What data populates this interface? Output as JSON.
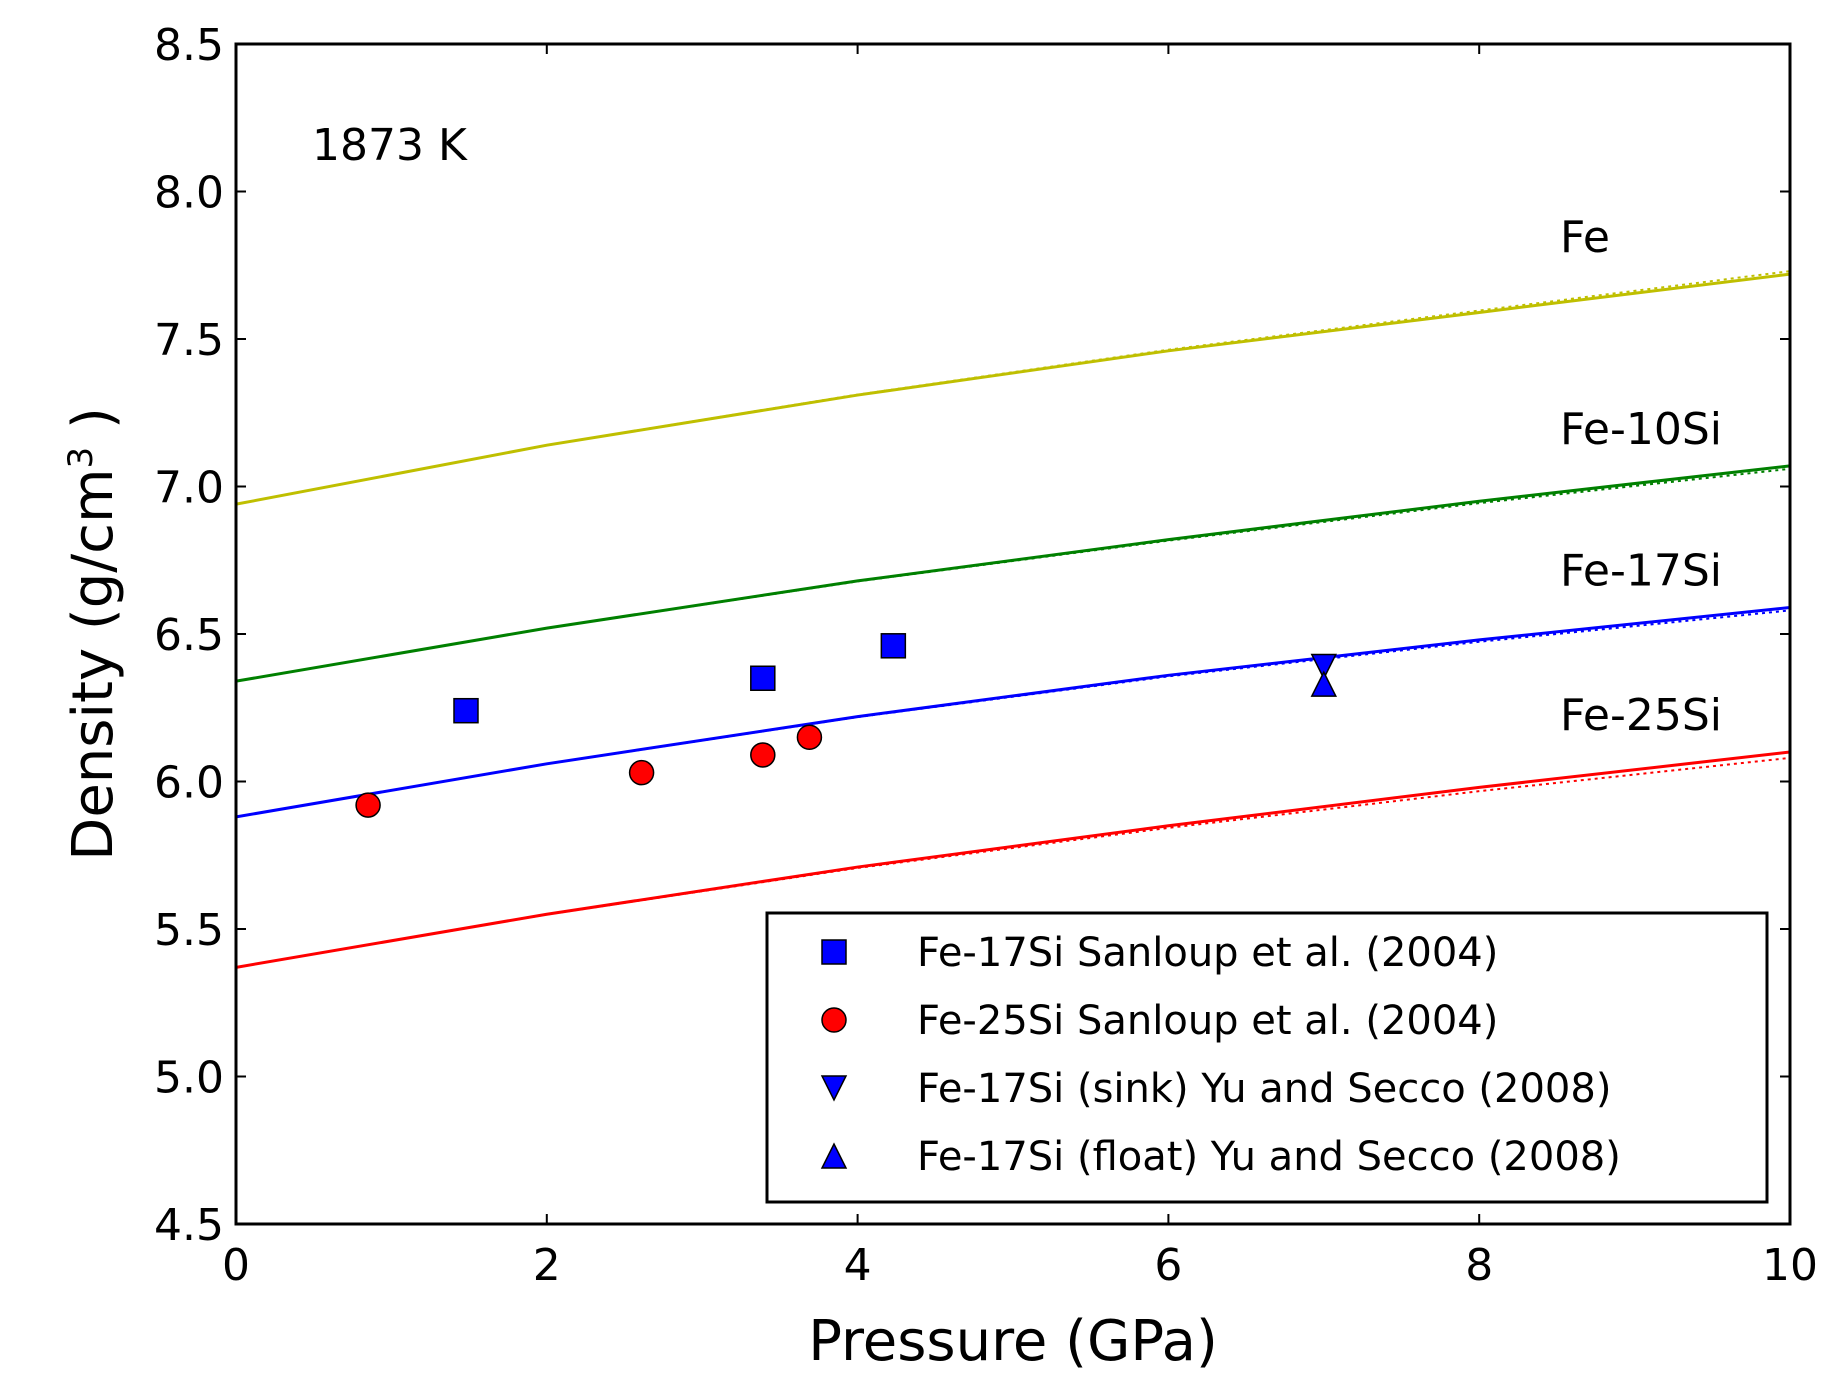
{
  "chart_data": {
    "type": "line",
    "title": "",
    "annotation": "1873 K",
    "xlabel": "Pressure (GPa)",
    "ylabel": {
      "prefix": "Density ",
      "unit_base": "(g/cm",
      "unit_exp": "3",
      "unit_close": " )"
    },
    "xlim": [
      0,
      10
    ],
    "ylim": [
      4.5,
      8.5
    ],
    "x_ticks": [
      0,
      2,
      4,
      6,
      8,
      10
    ],
    "y_ticks": [
      4.5,
      5.0,
      5.5,
      6.0,
      6.5,
      7.0,
      7.5,
      8.0,
      8.5
    ],
    "x_tick_labels": [
      "0",
      "2",
      "4",
      "6",
      "8",
      "10"
    ],
    "y_tick_labels": [
      "4.5",
      "5.0",
      "5.5",
      "6.0",
      "6.5",
      "7.0",
      "7.5",
      "8.0",
      "8.5"
    ],
    "grid": false,
    "legend_position": "bottom-right",
    "series": [
      {
        "name": "Fe",
        "color": "#bfbf00",
        "x": [
          0,
          2,
          4,
          6,
          8,
          10
        ],
        "y": [
          6.94,
          7.14,
          7.31,
          7.46,
          7.59,
          7.72
        ],
        "dotted_end": 7.73
      },
      {
        "name": "Fe-10Si",
        "color": "#008000",
        "x": [
          0,
          2,
          4,
          6,
          8,
          10
        ],
        "y": [
          6.34,
          6.52,
          6.68,
          6.82,
          6.95,
          7.07
        ],
        "dotted_end": 7.06
      },
      {
        "name": "Fe-17Si",
        "color": "#0000ff",
        "x": [
          0,
          2,
          4,
          6,
          8,
          10
        ],
        "y": [
          5.88,
          6.06,
          6.22,
          6.36,
          6.48,
          6.59
        ],
        "dotted_end": 6.58
      },
      {
        "name": "Fe-25Si",
        "color": "#ff0000",
        "x": [
          0,
          2,
          4,
          6,
          8,
          10
        ],
        "y": [
          5.37,
          5.55,
          5.71,
          5.85,
          5.98,
          6.1
        ],
        "dotted_end": 6.08
      }
    ],
    "scatter": [
      {
        "label": "Fe-17Si Sanloup et al. (2004)",
        "marker": "square",
        "color": "#0000ff",
        "points": [
          [
            1.48,
            6.24
          ],
          [
            3.39,
            6.35
          ],
          [
            4.23,
            6.46
          ]
        ]
      },
      {
        "label": "Fe-25Si Sanloup et al. (2004)",
        "marker": "circle",
        "color": "#ff0000",
        "points": [
          [
            0.85,
            5.92
          ],
          [
            2.61,
            6.03
          ],
          [
            3.39,
            6.09
          ],
          [
            3.69,
            6.15
          ]
        ]
      },
      {
        "label": "Fe-17Si (sink) Yu and Secco (2008)",
        "marker": "triangle-down",
        "color": "#0000ff",
        "points": [
          [
            7.0,
            6.39
          ]
        ]
      },
      {
        "label": "Fe-17Si (float) Yu and Secco (2008)",
        "marker": "triangle-up",
        "color": "#0000ff",
        "points": [
          [
            7.0,
            6.33
          ]
        ]
      }
    ]
  }
}
